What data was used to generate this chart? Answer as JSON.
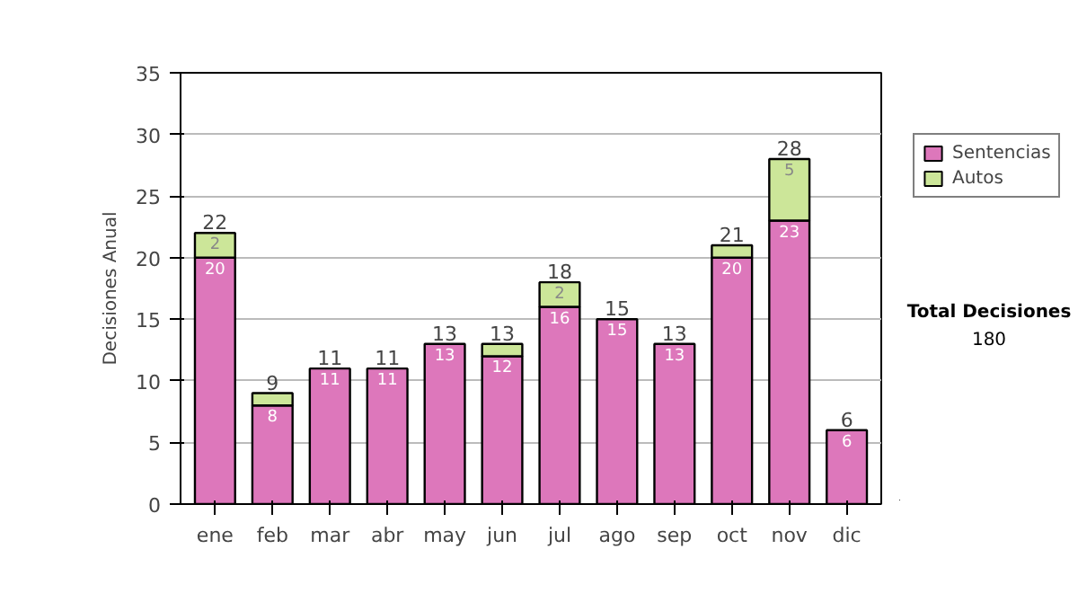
{
  "chart_data": {
    "type": "bar",
    "stacked": true,
    "ylabel": "Decisiones Anual",
    "categories": [
      "ene",
      "feb",
      "mar",
      "abr",
      "may",
      "jun",
      "jul",
      "ago",
      "sep",
      "oct",
      "nov",
      "dic"
    ],
    "series": [
      {
        "name": "Sentencias",
        "color": "#dd77bb",
        "values": [
          20,
          8,
          11,
          11,
          13,
          12,
          16,
          15,
          13,
          20,
          23,
          6
        ],
        "value_labels": [
          "20",
          "8",
          "11",
          "11",
          "13",
          "12",
          "16",
          "15",
          "13",
          "20",
          "23",
          "6"
        ]
      },
      {
        "name": "Autos",
        "color": "#cce699",
        "values": [
          2,
          1,
          null,
          null,
          null,
          1,
          2,
          null,
          null,
          1,
          5,
          null
        ],
        "value_labels": [
          "2",
          null,
          null,
          null,
          null,
          null,
          "2",
          null,
          null,
          null,
          "5",
          null
        ]
      }
    ],
    "totals": [
      "22",
      "9",
      "11",
      "11",
      "13",
      "13",
      "18",
      "15",
      "13",
      "21",
      "28",
      "6"
    ],
    "ylim": [
      0,
      35
    ],
    "yticks": [
      0,
      5,
      10,
      15,
      20,
      25,
      30,
      35
    ],
    "grid": "y",
    "legend": "right",
    "annotations": [
      "Total Decisiones",
      "180"
    ]
  }
}
